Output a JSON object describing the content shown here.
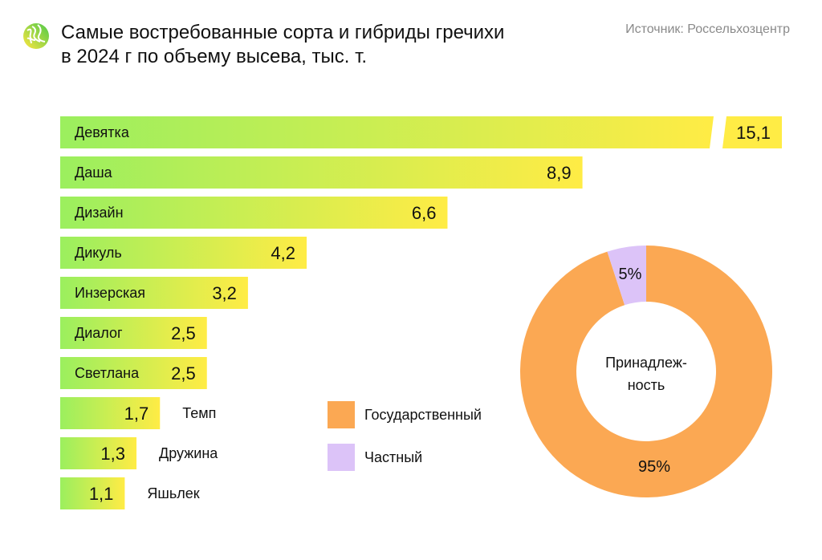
{
  "header": {
    "title_line1": "Самые востребованные сорта и гибриды гречихи",
    "title_line2": "в 2024 г по объему высева, тыс. т.",
    "source": "Источник: Россельхозцентр"
  },
  "colors": {
    "grad_start": "#9BEF5E",
    "grad_end": "#FFEC45",
    "state": "#FBA853",
    "private": "#DCC3F8"
  },
  "chart_data": [
    {
      "type": "bar",
      "orientation": "horizontal",
      "title": "Самые востребованные сорта и гибриды гречихи в 2024 г по объему высева, тыс. т.",
      "categories": [
        "Девятка",
        "Даша",
        "Дизайн",
        "Дикуль",
        "Инзерская",
        "Диалог",
        "Светлана",
        "Темп",
        "Дружина",
        "Яшьлек"
      ],
      "values": [
        15.1,
        8.9,
        6.6,
        4.2,
        3.2,
        2.5,
        2.5,
        1.7,
        1.3,
        1.1
      ],
      "value_labels": [
        "15,1",
        "8,9",
        "6,6",
        "4,2",
        "3,2",
        "2,5",
        "2,5",
        "1,7",
        "1,3",
        "1,1"
      ],
      "broken_axis_first_bar": true
    },
    {
      "type": "pie",
      "donut": true,
      "center_label": "Принадлеж-\nность",
      "center_label_lines": [
        "Принадлеж-",
        "ность"
      ],
      "slices": [
        {
          "name": "Государственный",
          "value": 95,
          "label": "95%"
        },
        {
          "name": "Частный",
          "value": 5,
          "label": "5%"
        }
      ],
      "legend": "left"
    }
  ]
}
